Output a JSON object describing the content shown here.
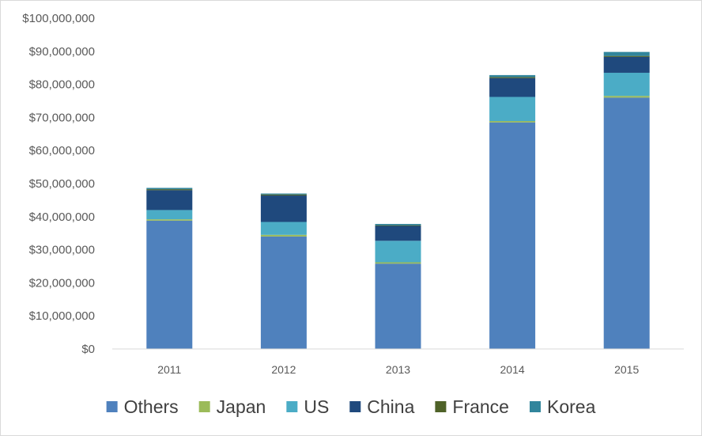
{
  "chart_data": {
    "type": "bar",
    "stacked": true,
    "categories": [
      "2011",
      "2012",
      "2013",
      "2014",
      "2015"
    ],
    "series": [
      {
        "name": "Others",
        "color": "#4f81bd",
        "values": [
          38800000,
          34000000,
          25800000,
          68500000,
          76000000
        ]
      },
      {
        "name": "Japan",
        "color": "#9bbb59",
        "values": [
          400000,
          500000,
          400000,
          400000,
          500000
        ]
      },
      {
        "name": "US",
        "color": "#4bacc6",
        "values": [
          2800000,
          3900000,
          6500000,
          7300000,
          7000000
        ]
      },
      {
        "name": "China",
        "color": "#1f497d",
        "values": [
          6000000,
          8000000,
          4500000,
          5700000,
          4800000
        ]
      },
      {
        "name": "France",
        "color": "#4f6228",
        "values": [
          300000,
          300000,
          200000,
          300000,
          300000
        ]
      },
      {
        "name": "Korea",
        "color": "#31859c",
        "values": [
          400000,
          300000,
          400000,
          600000,
          1200000
        ]
      }
    ],
    "ylim": [
      0,
      100000000
    ],
    "yticks": [
      0,
      10000000,
      20000000,
      30000000,
      40000000,
      50000000,
      60000000,
      70000000,
      80000000,
      90000000,
      100000000
    ],
    "ytick_labels": [
      "$0",
      "$10,000,000",
      "$20,000,000",
      "$30,000,000",
      "$40,000,000",
      "$50,000,000",
      "$60,000,000",
      "$70,000,000",
      "$80,000,000",
      "$90,000,000",
      "$100,000,000"
    ],
    "grid": false,
    "legend_position": "bottom",
    "title": "",
    "xlabel": "",
    "ylabel": ""
  }
}
